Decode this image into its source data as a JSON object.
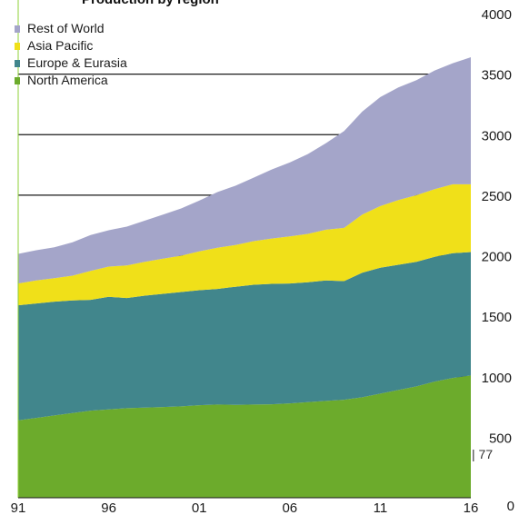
{
  "chart_data": {
    "type": "area",
    "stacked": true,
    "title": "Production by region",
    "x": [
      1991,
      1992,
      1993,
      1994,
      1995,
      1996,
      1997,
      1998,
      1999,
      2000,
      2001,
      2002,
      2003,
      2004,
      2005,
      2006,
      2007,
      2008,
      2009,
      2010,
      2011,
      2012,
      2013,
      2014,
      2015,
      2016
    ],
    "x_tick_values": [
      1991,
      1996,
      2001,
      2006,
      2011,
      2016
    ],
    "x_tick_labels": [
      "91",
      "96",
      "01",
      "06",
      "11",
      "16"
    ],
    "ylim": [
      0,
      4000
    ],
    "y_ticks": [
      0,
      500,
      1000,
      1500,
      2000,
      2500,
      3000,
      3500,
      4000
    ],
    "series": [
      {
        "name": "North America",
        "color": "#6cab2c",
        "values": [
          640,
          660,
          680,
          700,
          720,
          730,
          740,
          745,
          750,
          755,
          765,
          770,
          768,
          770,
          772,
          780,
          790,
          800,
          810,
          830,
          860,
          890,
          920,
          960,
          990,
          1010
        ]
      },
      {
        "name": "Europe & Eurasia",
        "color": "#41868c",
        "values": [
          950,
          945,
          940,
          930,
          915,
          930,
          910,
          925,
          935,
          945,
          950,
          955,
          975,
          990,
          995,
          990,
          990,
          995,
          980,
          1030,
          1040,
          1035,
          1030,
          1030,
          1030,
          1020
        ]
      },
      {
        "name": "Asia Pacific",
        "color": "#f0e019",
        "values": [
          180,
          190,
          195,
          205,
          240,
          250,
          270,
          280,
          290,
          300,
          320,
          340,
          345,
          360,
          375,
          390,
          400,
          420,
          440,
          480,
          510,
          535,
          550,
          560,
          570,
          560
        ]
      },
      {
        "name": "Rest of World",
        "color": "#a4a5c9",
        "values": [
          245,
          250,
          255,
          275,
          295,
          300,
          320,
          340,
          365,
          390,
          420,
          460,
          490,
          525,
          570,
          610,
          660,
          715,
          800,
          850,
          900,
          930,
          950,
          980,
          1000,
          1050
        ]
      }
    ],
    "legend_position": "top-left",
    "grid": false
  },
  "page_marker": "| 77"
}
